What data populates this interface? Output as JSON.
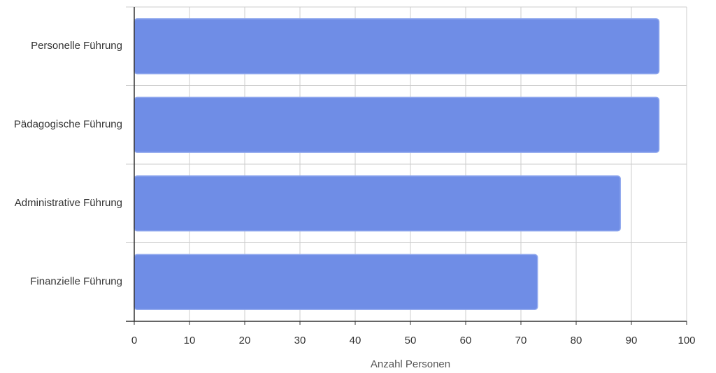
{
  "chart_data": {
    "type": "hbar",
    "categories": [
      "Personelle Führung",
      "Pädagogische Führung",
      "Administrative Führung",
      "Finanzielle Führung"
    ],
    "values": [
      95,
      95,
      88,
      73
    ],
    "color": "#6f8de6",
    "x_label": "Anzahl Personen",
    "xlim": [
      0,
      100
    ],
    "xticks": [
      0,
      10,
      20,
      30,
      40,
      50,
      60,
      70,
      80,
      90,
      100
    ],
    "grid": true
  }
}
